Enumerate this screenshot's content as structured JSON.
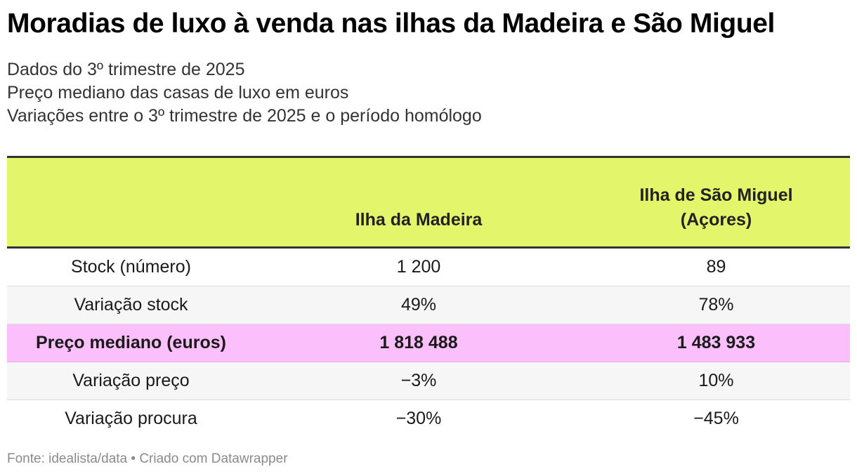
{
  "title": "Moradias de luxo à venda nas ilhas da Madeira e São Miguel",
  "subtitle_lines": [
    "Dados do 3º trimestre de 2025",
    "Preço mediano das casas de luxo em euros",
    "Variações entre o 3º trimestre de 2025 e o período homólogo"
  ],
  "chart_data": {
    "type": "table",
    "columns": [
      "",
      "Ilha da Madeira",
      "Ilha de São Miguel (Açores)"
    ],
    "rows": [
      {
        "label": "Stock (número)",
        "values": [
          "1 200",
          "89"
        ]
      },
      {
        "label": "Variação stock",
        "values": [
          "49%",
          "78%"
        ]
      },
      {
        "label": "Preço mediano (euros)",
        "values": [
          "1 818 488",
          "1 483 933"
        ]
      },
      {
        "label": "Variação preço",
        "values": [
          "−3%",
          "10%"
        ]
      },
      {
        "label": "Variação procura",
        "values": [
          "−30%",
          "−45%"
        ]
      }
    ],
    "highlight_row": 2,
    "colors": {
      "header_bg": "#e2f56b",
      "highlight_bg": "#fbc0fb",
      "alt_row_bg": "#f6f6f6"
    }
  },
  "header_lines": {
    "col2": [
      "Ilha de São Miguel",
      "(Açores)"
    ]
  },
  "footer": "Fonte: idealista/data • Criado com Datawrapper"
}
